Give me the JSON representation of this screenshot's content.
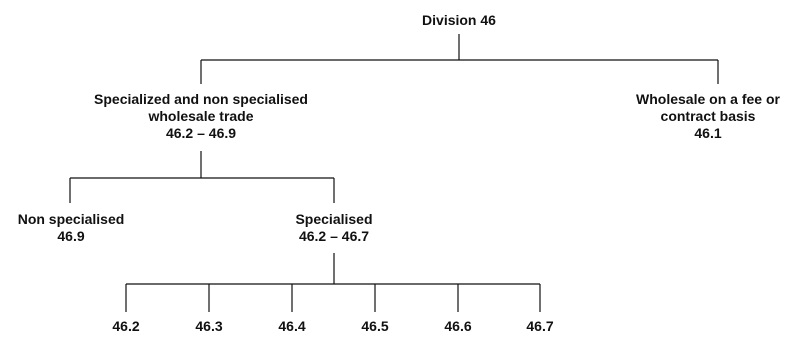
{
  "root": {
    "label": "Division 46"
  },
  "specialized_and_non": {
    "line1": "Specialized and non specialised",
    "line2": "wholesale trade",
    "code": "46.2 – 46.9"
  },
  "fee_contract": {
    "line1": "Wholesale on a fee or",
    "line2": "contract basis",
    "code": "46.1"
  },
  "non_specialised": {
    "line1": "Non specialised",
    "code": "46.9"
  },
  "specialised": {
    "line1": "Specialised",
    "code": "46.2 – 46.7"
  },
  "leaves": [
    "46.2",
    "46.3",
    "46.4",
    "46.5",
    "46.6",
    "46.7"
  ],
  "colors": {
    "line": "#111111",
    "text": "#111111",
    "background": "#ffffff"
  }
}
